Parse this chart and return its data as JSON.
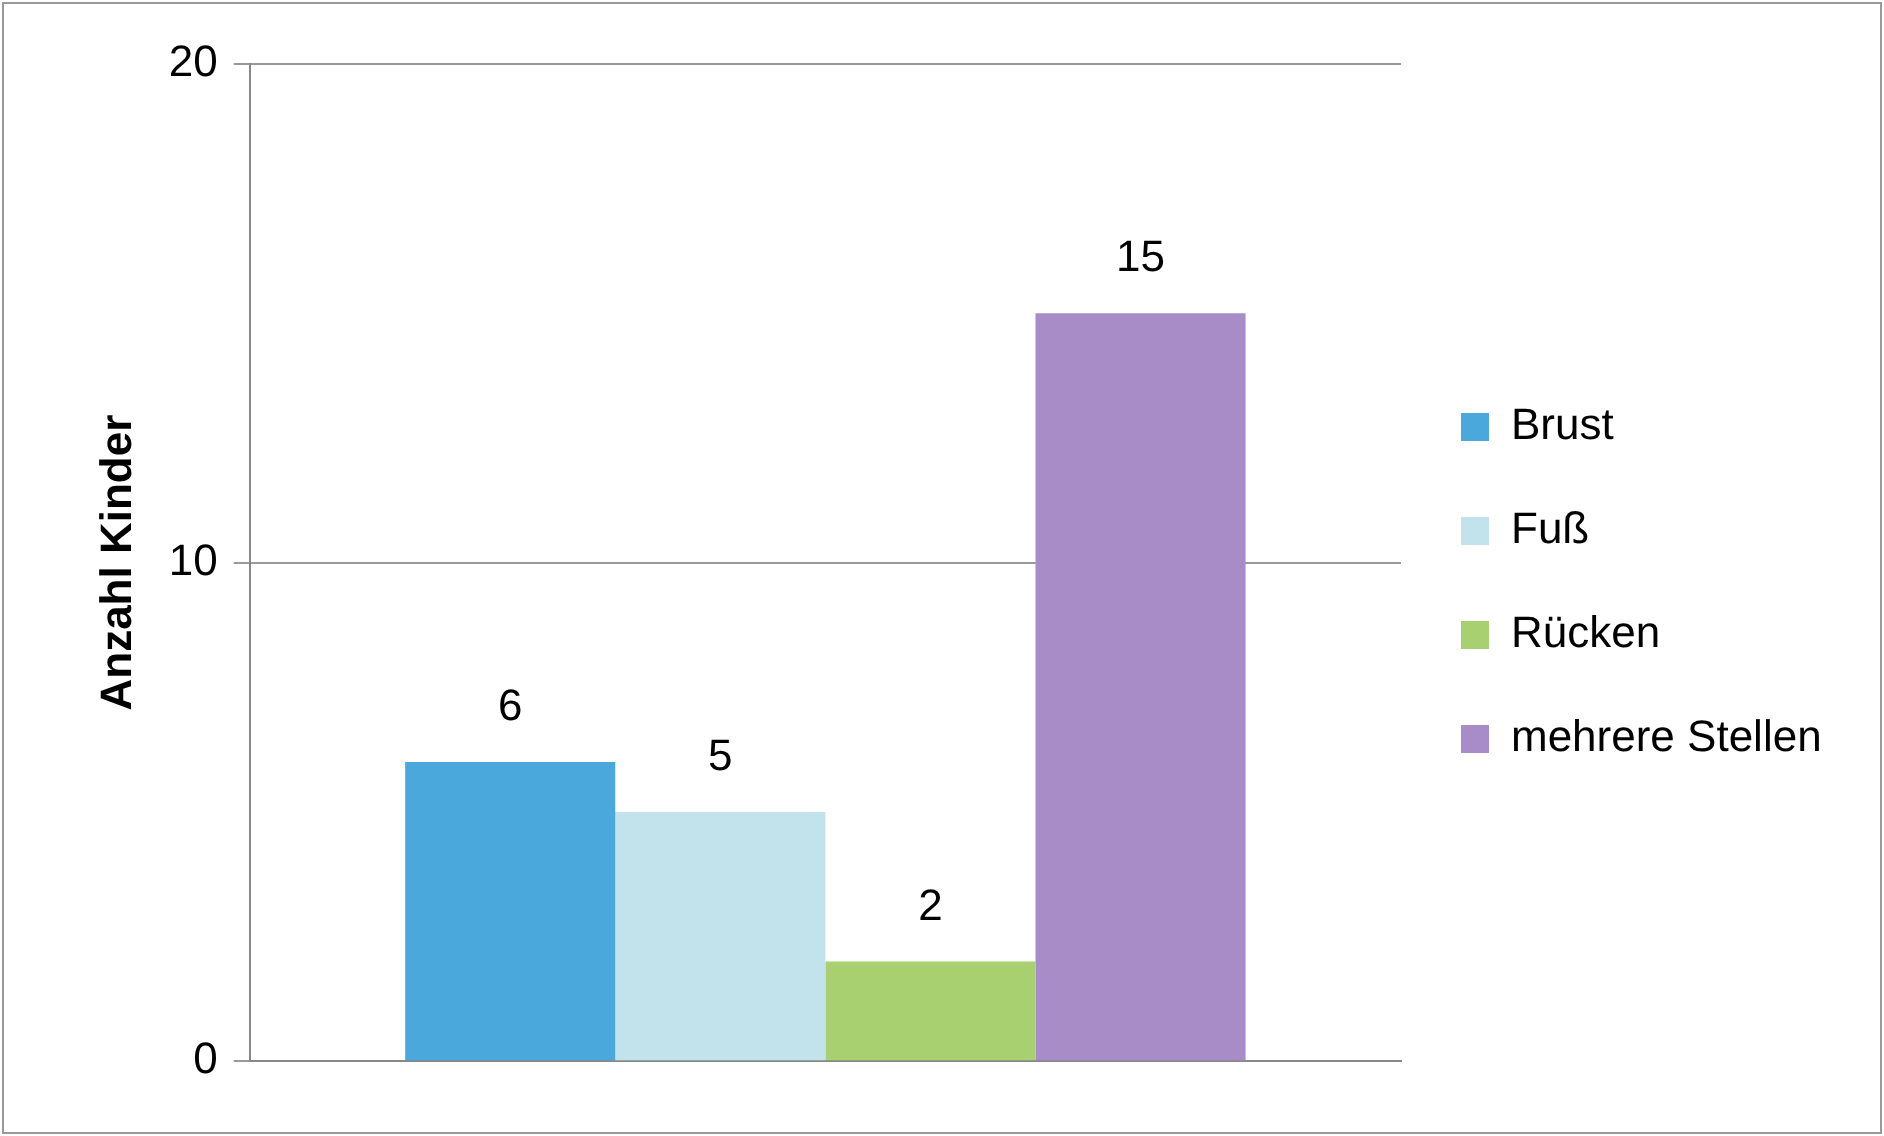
{
  "chart_data": {
    "type": "bar",
    "ylabel": "Anzahl Kinder",
    "categories": [
      null
    ],
    "series": [
      {
        "name": "Brust",
        "color": "#4aa8dc",
        "values": [
          6
        ]
      },
      {
        "name": "Fuß",
        "color": "#c3e3ec",
        "values": [
          5
        ]
      },
      {
        "name": "Rücken",
        "color": "#a8d070",
        "values": [
          2
        ]
      },
      {
        "name": "mehrere Stellen",
        "color": "#a88cc8",
        "values": [
          15
        ]
      }
    ],
    "ylim": [
      0,
      20
    ],
    "yticks": [
      0,
      10,
      20
    ],
    "grid": "y",
    "legend": "right",
    "data_labels": true
  }
}
